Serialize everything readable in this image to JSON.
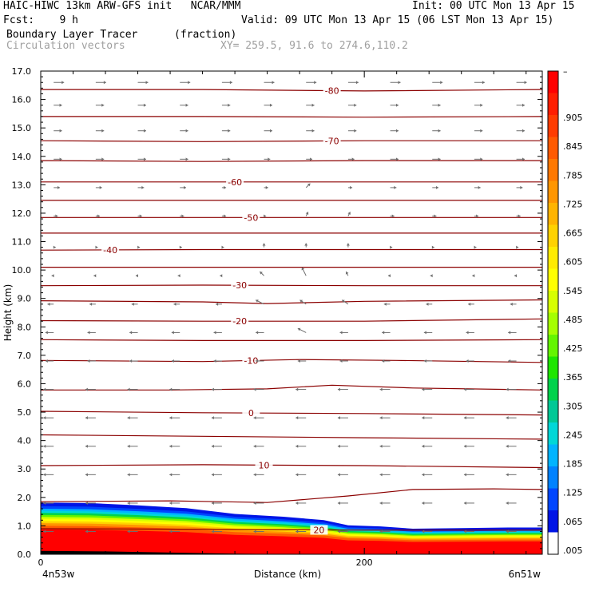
{
  "header": {
    "line1_left": "HAIC-HIWC 13km ARW-GFS init   NCAR/MMM",
    "line1_right": "Init: 00 UTC Mon 13 Apr 15",
    "line2_left": "Fcst:    9 h",
    "line2_right": "Valid: 09 UTC Mon 13 Apr 15 (06 LST Mon 13 Apr 15)",
    "field_name": "Boundary Layer Tracer",
    "field_units": "(fraction)",
    "vector_name": "Circulation vectors",
    "cross_section": "XY= 259.5, 91.6 to 274.6,110.2"
  },
  "chart_data": {
    "type": "heatmap",
    "title": "Boundary Layer Tracer",
    "units": "(fraction)",
    "xlabel": "Distance (km)",
    "ylabel": "Height (km)",
    "xlim": [
      0,
      310
    ],
    "ylim": [
      0,
      17
    ],
    "x_ticks": [
      {
        "value": 0,
        "label": "0"
      },
      {
        "value": 200,
        "label": "200"
      }
    ],
    "x_endpoint_labels": {
      "left": "4n53w",
      "right": "6n51w"
    },
    "y_ticks": [
      "0.0",
      "1.0",
      "2.0",
      "3.0",
      "4.0",
      "5.0",
      "6.0",
      "7.0",
      "8.0",
      "9.0",
      "10.0",
      "11.0",
      "12.0",
      "13.0",
      "14.0",
      "15.0",
      "16.0",
      "17.0"
    ],
    "colorbar": {
      "top_label": "–",
      "labels": [
        ".905",
        ".845",
        ".785",
        ".725",
        ".665",
        ".605",
        ".545",
        ".485",
        ".425",
        ".365",
        ".305",
        ".245",
        ".185",
        ".125",
        ".065",
        ".005"
      ],
      "colors": [
        "#ff0000",
        "#ff1e00",
        "#ff3c00",
        "#ff5a00",
        "#ff7800",
        "#ff9600",
        "#ffb400",
        "#ffd200",
        "#ffeb00",
        "#ffff00",
        "#d7ff00",
        "#a5ff00",
        "#64f500",
        "#1ee600",
        "#00d24b",
        "#00c896",
        "#00d7d7",
        "#00b4ff",
        "#0082ff",
        "#0046ff",
        "#0014e6",
        "#ffffff"
      ]
    },
    "tracer_surface": [
      {
        "x": 0,
        "h": 1.82
      },
      {
        "x": 30,
        "h": 1.8
      },
      {
        "x": 60,
        "h": 1.72
      },
      {
        "x": 90,
        "h": 1.62
      },
      {
        "x": 120,
        "h": 1.42
      },
      {
        "x": 150,
        "h": 1.32
      },
      {
        "x": 175,
        "h": 1.2
      },
      {
        "x": 190,
        "h": 1.02
      },
      {
        "x": 210,
        "h": 0.98
      },
      {
        "x": 230,
        "h": 0.9
      },
      {
        "x": 260,
        "h": 0.92
      },
      {
        "x": 290,
        "h": 0.94
      },
      {
        "x": 310,
        "h": 0.94
      }
    ],
    "terrain": [
      {
        "x": 0,
        "h": 0.12
      },
      {
        "x": 40,
        "h": 0.1
      },
      {
        "x": 80,
        "h": 0.06
      },
      {
        "x": 120,
        "h": 0.02
      },
      {
        "x": 160,
        "h": 0.0
      },
      {
        "x": 310,
        "h": 0.0
      }
    ],
    "temperature_contours": [
      {
        "label": "-80",
        "label_x": 180,
        "points": [
          [
            0,
            16.35
          ],
          [
            100,
            16.35
          ],
          [
            200,
            16.3
          ],
          [
            310,
            16.35
          ]
        ]
      },
      {
        "label": "",
        "label_x": null,
        "points": [
          [
            0,
            15.4
          ],
          [
            100,
            15.4
          ],
          [
            200,
            15.38
          ],
          [
            310,
            15.4
          ]
        ]
      },
      {
        "label": "-70",
        "label_x": 180,
        "points": [
          [
            0,
            14.55
          ],
          [
            100,
            14.52
          ],
          [
            200,
            14.55
          ],
          [
            310,
            14.55
          ]
        ]
      },
      {
        "label": "",
        "label_x": null,
        "points": [
          [
            0,
            13.85
          ],
          [
            100,
            13.82
          ],
          [
            200,
            13.85
          ],
          [
            310,
            13.85
          ]
        ]
      },
      {
        "label": "-60",
        "label_x": 120,
        "points": [
          [
            0,
            13.1
          ],
          [
            100,
            13.1
          ],
          [
            200,
            13.1
          ],
          [
            310,
            13.1
          ]
        ]
      },
      {
        "label": "",
        "label_x": null,
        "points": [
          [
            0,
            12.45
          ],
          [
            100,
            12.45
          ],
          [
            200,
            12.45
          ],
          [
            310,
            12.45
          ]
        ]
      },
      {
        "label": "-50",
        "label_x": 130,
        "points": [
          [
            0,
            11.85
          ],
          [
            100,
            11.85
          ],
          [
            200,
            11.85
          ],
          [
            310,
            11.85
          ]
        ]
      },
      {
        "label": "",
        "label_x": null,
        "points": [
          [
            0,
            11.3
          ],
          [
            100,
            11.3
          ],
          [
            200,
            11.3
          ],
          [
            310,
            11.3
          ]
        ]
      },
      {
        "label": "-40",
        "label_x": 43,
        "points": [
          [
            0,
            10.7
          ],
          [
            100,
            10.72
          ],
          [
            200,
            10.72
          ],
          [
            310,
            10.72
          ]
        ]
      },
      {
        "label": "",
        "label_x": null,
        "points": [
          [
            0,
            10.1
          ],
          [
            100,
            10.1
          ],
          [
            200,
            10.1
          ],
          [
            310,
            10.1
          ]
        ]
      },
      {
        "label": "-30",
        "label_x": 123,
        "points": [
          [
            0,
            9.45
          ],
          [
            100,
            9.47
          ],
          [
            200,
            9.45
          ],
          [
            310,
            9.45
          ]
        ]
      },
      {
        "label": "",
        "label_x": null,
        "points": [
          [
            0,
            8.92
          ],
          [
            100,
            8.88
          ],
          [
            140,
            8.82
          ],
          [
            200,
            8.9
          ],
          [
            310,
            8.95
          ]
        ]
      },
      {
        "label": "-20",
        "label_x": 123,
        "points": [
          [
            0,
            8.22
          ],
          [
            100,
            8.2
          ],
          [
            200,
            8.2
          ],
          [
            310,
            8.28
          ]
        ]
      },
      {
        "label": "",
        "label_x": null,
        "points": [
          [
            0,
            7.55
          ],
          [
            100,
            7.52
          ],
          [
            200,
            7.52
          ],
          [
            310,
            7.55
          ]
        ]
      },
      {
        "label": "-10",
        "label_x": 130,
        "points": [
          [
            0,
            6.82
          ],
          [
            100,
            6.78
          ],
          [
            160,
            6.85
          ],
          [
            220,
            6.82
          ],
          [
            310,
            6.75
          ]
        ]
      },
      {
        "label": "",
        "label_x": null,
        "points": [
          [
            0,
            5.78
          ],
          [
            80,
            5.78
          ],
          [
            140,
            5.82
          ],
          [
            180,
            5.95
          ],
          [
            230,
            5.85
          ],
          [
            310,
            5.78
          ]
        ]
      },
      {
        "label": "0",
        "label_x": 130,
        "points": [
          [
            0,
            5.03
          ],
          [
            100,
            4.98
          ],
          [
            200,
            4.95
          ],
          [
            310,
            4.9
          ]
        ]
      },
      {
        "label": "",
        "label_x": null,
        "points": [
          [
            0,
            4.2
          ],
          [
            100,
            4.15
          ],
          [
            200,
            4.1
          ],
          [
            310,
            4.05
          ]
        ]
      },
      {
        "label": "10",
        "label_x": 138,
        "points": [
          [
            0,
            3.12
          ],
          [
            100,
            3.15
          ],
          [
            200,
            3.12
          ],
          [
            310,
            3.05
          ]
        ]
      },
      {
        "label": "",
        "label_x": null,
        "points": [
          [
            0,
            1.85
          ],
          [
            80,
            1.88
          ],
          [
            140,
            1.82
          ],
          [
            190,
            2.05
          ],
          [
            230,
            2.28
          ],
          [
            280,
            2.3
          ],
          [
            310,
            2.28
          ]
        ]
      },
      {
        "label": "20",
        "label_x": 172,
        "points": [
          [
            0,
            0.9
          ],
          [
            100,
            0.88
          ],
          [
            200,
            0.85
          ],
          [
            310,
            0.85
          ]
        ]
      }
    ],
    "vectors": [
      {
        "height_km": 16.6,
        "u": [
          5,
          5,
          5,
          5,
          5,
          5,
          5,
          5,
          5,
          5,
          5,
          5
        ],
        "w": [
          0,
          0,
          0,
          0,
          0,
          0,
          0,
          0,
          0,
          0,
          0,
          0
        ]
      },
      {
        "height_km": 15.8,
        "u": [
          4,
          4,
          4,
          4,
          4,
          4,
          4,
          4,
          4,
          4,
          4,
          4
        ],
        "w": [
          0,
          0,
          0,
          0,
          0,
          0,
          0,
          0,
          0,
          0,
          0,
          0
        ]
      },
      {
        "height_km": 14.9,
        "u": [
          4,
          4,
          4,
          4,
          4,
          4,
          4,
          4,
          4,
          4,
          4,
          4
        ],
        "w": [
          0,
          0,
          0,
          0,
          0,
          0,
          0,
          0,
          0,
          0,
          0,
          0
        ]
      },
      {
        "height_km": 13.9,
        "u": [
          4,
          4,
          4,
          4,
          4,
          3,
          3,
          3,
          4,
          4,
          4,
          4
        ],
        "w": [
          0,
          0,
          0,
          0,
          0,
          0,
          0,
          0,
          0,
          0,
          0,
          0
        ]
      },
      {
        "height_km": 12.9,
        "u": [
          3,
          3,
          3,
          3,
          2,
          2,
          2,
          2,
          3,
          3,
          3,
          3
        ],
        "w": [
          0,
          0,
          0,
          0,
          0,
          0,
          1,
          0,
          0,
          0,
          0,
          0
        ]
      },
      {
        "height_km": 11.9,
        "u": [
          2,
          2,
          2,
          2,
          2,
          1,
          1,
          1,
          2,
          2,
          2,
          2
        ],
        "w": [
          0,
          0,
          0,
          0,
          0,
          0,
          1,
          1,
          0,
          0,
          0,
          0
        ]
      },
      {
        "height_km": 10.8,
        "u": [
          1,
          1,
          1,
          1,
          1,
          0,
          0,
          0,
          1,
          1,
          1,
          1
        ],
        "w": [
          0,
          0,
          0,
          0,
          0,
          1,
          1,
          1,
          0,
          0,
          0,
          0
        ]
      },
      {
        "height_km": 9.8,
        "u": [
          -1,
          -1,
          -1,
          -1,
          -1,
          -2,
          -2,
          -1,
          -1,
          -1,
          -1,
          -1
        ],
        "w": [
          0,
          0,
          0,
          0,
          0,
          1,
          2,
          1,
          0,
          0,
          0,
          0
        ]
      },
      {
        "height_km": 8.8,
        "u": [
          -3,
          -3,
          -3,
          -3,
          -3,
          -4,
          -3,
          -3,
          -3,
          -3,
          -3,
          -3
        ],
        "w": [
          0,
          0,
          0,
          0,
          0,
          1,
          1,
          1,
          0,
          0,
          0,
          0
        ]
      },
      {
        "height_km": 7.8,
        "u": [
          -4,
          -4,
          -4,
          -4,
          -4,
          -4,
          -4,
          -4,
          -4,
          -4,
          -4,
          -4
        ],
        "w": [
          0,
          0,
          0,
          0,
          0,
          0,
          1,
          0,
          0,
          0,
          0,
          0
        ]
      },
      {
        "height_km": 6.8,
        "u": [
          -4,
          -4,
          -4,
          -4,
          -4,
          -4,
          -4,
          -4,
          -4,
          -4,
          -4,
          -4
        ],
        "w": [
          0,
          0,
          0,
          0,
          0,
          0,
          0,
          0,
          0,
          0,
          0,
          0
        ]
      },
      {
        "height_km": 5.8,
        "u": [
          -5,
          -5,
          -5,
          -5,
          -5,
          -5,
          -5,
          -5,
          -5,
          -5,
          -5,
          -5
        ],
        "w": [
          0,
          0,
          0,
          0,
          0,
          0,
          0,
          0,
          0,
          0,
          0,
          0
        ]
      },
      {
        "height_km": 4.8,
        "u": [
          -5,
          -5,
          -5,
          -5,
          -5,
          -5,
          -5,
          -5,
          -5,
          -5,
          -5,
          -5
        ],
        "w": [
          0,
          0,
          0,
          0,
          0,
          0,
          0,
          0,
          0,
          0,
          0,
          0
        ]
      },
      {
        "height_km": 3.8,
        "u": [
          -5,
          -5,
          -5,
          -5,
          -5,
          -5,
          -5,
          -5,
          -5,
          -5,
          -5,
          -5
        ],
        "w": [
          0,
          0,
          0,
          0,
          0,
          0,
          0,
          0,
          0,
          0,
          0,
          0
        ]
      },
      {
        "height_km": 2.8,
        "u": [
          -5,
          -5,
          -5,
          -5,
          -5,
          -5,
          -5,
          -5,
          -5,
          -5,
          -5,
          -5
        ],
        "w": [
          0,
          0,
          0,
          0,
          0,
          0,
          0,
          0,
          0,
          0,
          0,
          0
        ]
      },
      {
        "height_km": 1.8,
        "u": [
          -5,
          -5,
          -5,
          -5,
          -5,
          -5,
          -5,
          -5,
          -5,
          -5,
          -5,
          -5
        ],
        "w": [
          0,
          0,
          0,
          0,
          0,
          0,
          0,
          0,
          0,
          0,
          0,
          0
        ]
      },
      {
        "height_km": 0.8,
        "u": [
          -5,
          -5,
          -5,
          -5,
          -5,
          -5,
          -5,
          -5,
          -5,
          -5,
          -5,
          -5
        ],
        "w": [
          0,
          0,
          0,
          0,
          0,
          0,
          0,
          0,
          0,
          0,
          0,
          0
        ]
      }
    ],
    "vector_x_km": [
      4,
      30,
      56,
      82,
      108,
      134,
      160,
      186,
      212,
      238,
      264,
      290
    ]
  },
  "colors": {
    "contour": "#8b0000",
    "vector": "#6e6e6e",
    "header_gray": "#a0a0a0"
  }
}
